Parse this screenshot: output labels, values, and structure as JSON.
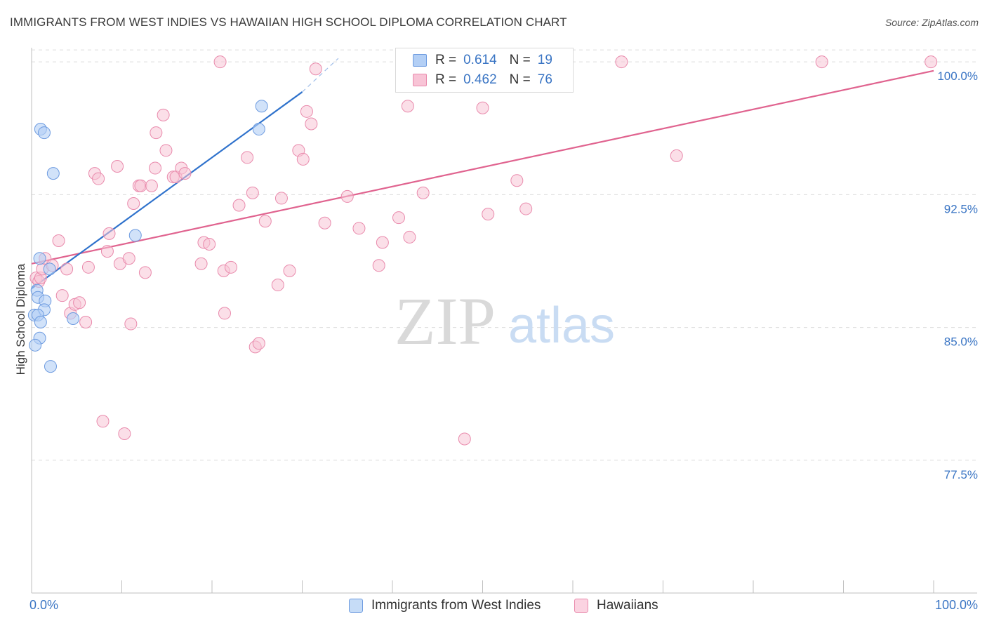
{
  "title": "IMMIGRANTS FROM WEST INDIES VS HAWAIIAN HIGH SCHOOL DIPLOMA CORRELATION CHART",
  "source": "Source: ZipAtlas.com",
  "watermark": {
    "zip": "ZIP",
    "atlas": "atlas"
  },
  "legend": {
    "r_label": "R =",
    "n_label": "N =",
    "series1": {
      "r": "0.614",
      "n": "19"
    },
    "series2": {
      "r": "0.462",
      "n": "76"
    }
  },
  "colors": {
    "blue_fill": "#b3cff5",
    "blue_stroke": "#6d9be0",
    "blue_line": "#2f72cc",
    "pink_fill": "#f8c4d6",
    "pink_stroke": "#e98aac",
    "pink_line": "#e0638f",
    "axis_text": "#3a75c4",
    "grid": "#dcdcdc"
  },
  "chart_data": {
    "type": "scatter",
    "title": "IMMIGRANTS FROM WEST INDIES VS HAWAIIAN HIGH SCHOOL DIPLOMA CORRELATION CHART",
    "xlabel": "",
    "ylabel": "High School Diploma",
    "xlim": [
      0,
      100
    ],
    "ylim": [
      70.0,
      100.8
    ],
    "x_tick_labels": [
      "0.0%",
      "100.0%"
    ],
    "y_ticks": [
      {
        "value": 100.0,
        "label": "100.0%"
      },
      {
        "value": 92.5,
        "label": "92.5%"
      },
      {
        "value": 85.0,
        "label": "85.0%"
      },
      {
        "value": 77.5,
        "label": "77.5%"
      }
    ],
    "series": [
      {
        "name": "Immigrants from West Indies",
        "color": "blue",
        "points": [
          [
            1.0,
            96.2
          ],
          [
            1.4,
            96.0
          ],
          [
            2.4,
            93.7
          ],
          [
            0.9,
            88.9
          ],
          [
            2.0,
            88.3
          ],
          [
            0.6,
            87.1
          ],
          [
            0.7,
            86.7
          ],
          [
            1.5,
            86.5
          ],
          [
            1.4,
            86.0
          ],
          [
            0.3,
            85.7
          ],
          [
            0.7,
            85.7
          ],
          [
            1.0,
            85.3
          ],
          [
            4.6,
            85.5
          ],
          [
            0.9,
            84.4
          ],
          [
            0.4,
            84.0
          ],
          [
            2.1,
            82.8
          ],
          [
            11.5,
            90.2
          ],
          [
            25.2,
            96.2
          ],
          [
            25.5,
            97.5
          ]
        ],
        "trend": {
          "x": [
            0,
            30
          ],
          "y": [
            87.2,
            98.3
          ],
          "dashed_to": {
            "x": 34,
            "y": 100.2
          }
        }
      },
      {
        "name": "Hawaiians",
        "color": "pink",
        "points": [
          [
            0.5,
            87.8
          ],
          [
            0.8,
            87.6
          ],
          [
            1.0,
            87.8
          ],
          [
            1.2,
            88.3
          ],
          [
            1.5,
            88.9
          ],
          [
            2.3,
            88.5
          ],
          [
            3.0,
            89.9
          ],
          [
            3.4,
            86.8
          ],
          [
            3.9,
            88.3
          ],
          [
            4.3,
            85.8
          ],
          [
            4.8,
            86.3
          ],
          [
            5.3,
            86.4
          ],
          [
            6.0,
            85.3
          ],
          [
            6.3,
            88.4
          ],
          [
            7.0,
            93.7
          ],
          [
            7.4,
            93.4
          ],
          [
            7.9,
            79.7
          ],
          [
            8.4,
            89.3
          ],
          [
            8.6,
            90.3
          ],
          [
            9.5,
            94.1
          ],
          [
            9.8,
            88.6
          ],
          [
            10.3,
            79.0
          ],
          [
            10.8,
            88.9
          ],
          [
            11.0,
            85.2
          ],
          [
            11.3,
            92.0
          ],
          [
            11.9,
            93.0
          ],
          [
            12.1,
            93.0
          ],
          [
            12.6,
            88.1
          ],
          [
            13.3,
            93.0
          ],
          [
            13.7,
            94.0
          ],
          [
            13.8,
            96.0
          ],
          [
            14.6,
            97.0
          ],
          [
            14.9,
            95.0
          ],
          [
            15.7,
            93.5
          ],
          [
            16.0,
            93.5
          ],
          [
            16.6,
            94.0
          ],
          [
            17.0,
            93.7
          ],
          [
            18.8,
            88.6
          ],
          [
            19.1,
            89.8
          ],
          [
            19.7,
            89.7
          ],
          [
            20.9,
            100.0
          ],
          [
            21.3,
            88.2
          ],
          [
            21.4,
            85.8
          ],
          [
            22.1,
            88.4
          ],
          [
            23.0,
            91.9
          ],
          [
            23.9,
            94.6
          ],
          [
            24.5,
            92.6
          ],
          [
            24.8,
            83.9
          ],
          [
            25.2,
            84.1
          ],
          [
            25.9,
            91.0
          ],
          [
            27.3,
            87.4
          ],
          [
            27.7,
            92.3
          ],
          [
            28.6,
            88.2
          ],
          [
            29.6,
            95.0
          ],
          [
            30.1,
            94.5
          ],
          [
            30.5,
            97.2
          ],
          [
            31.0,
            96.5
          ],
          [
            31.5,
            99.6
          ],
          [
            32.5,
            90.9
          ],
          [
            35.0,
            92.4
          ],
          [
            36.3,
            90.6
          ],
          [
            38.5,
            88.5
          ],
          [
            38.9,
            89.8
          ],
          [
            40.7,
            91.2
          ],
          [
            41.7,
            97.5
          ],
          [
            41.9,
            90.1
          ],
          [
            43.4,
            92.6
          ],
          [
            48.0,
            78.7
          ],
          [
            50.0,
            97.4
          ],
          [
            50.6,
            91.4
          ],
          [
            53.8,
            93.3
          ],
          [
            54.8,
            91.7
          ],
          [
            65.4,
            100.0
          ],
          [
            71.5,
            94.7
          ],
          [
            87.6,
            100.0
          ],
          [
            99.7,
            100.0
          ]
        ],
        "trend": {
          "x": [
            0,
            100
          ],
          "y": [
            88.6,
            99.5
          ]
        }
      }
    ],
    "legend_position": "top-center",
    "grid": true
  },
  "bottom_legend": {
    "item1": "Immigrants from West Indies",
    "item2": "Hawaiians"
  }
}
